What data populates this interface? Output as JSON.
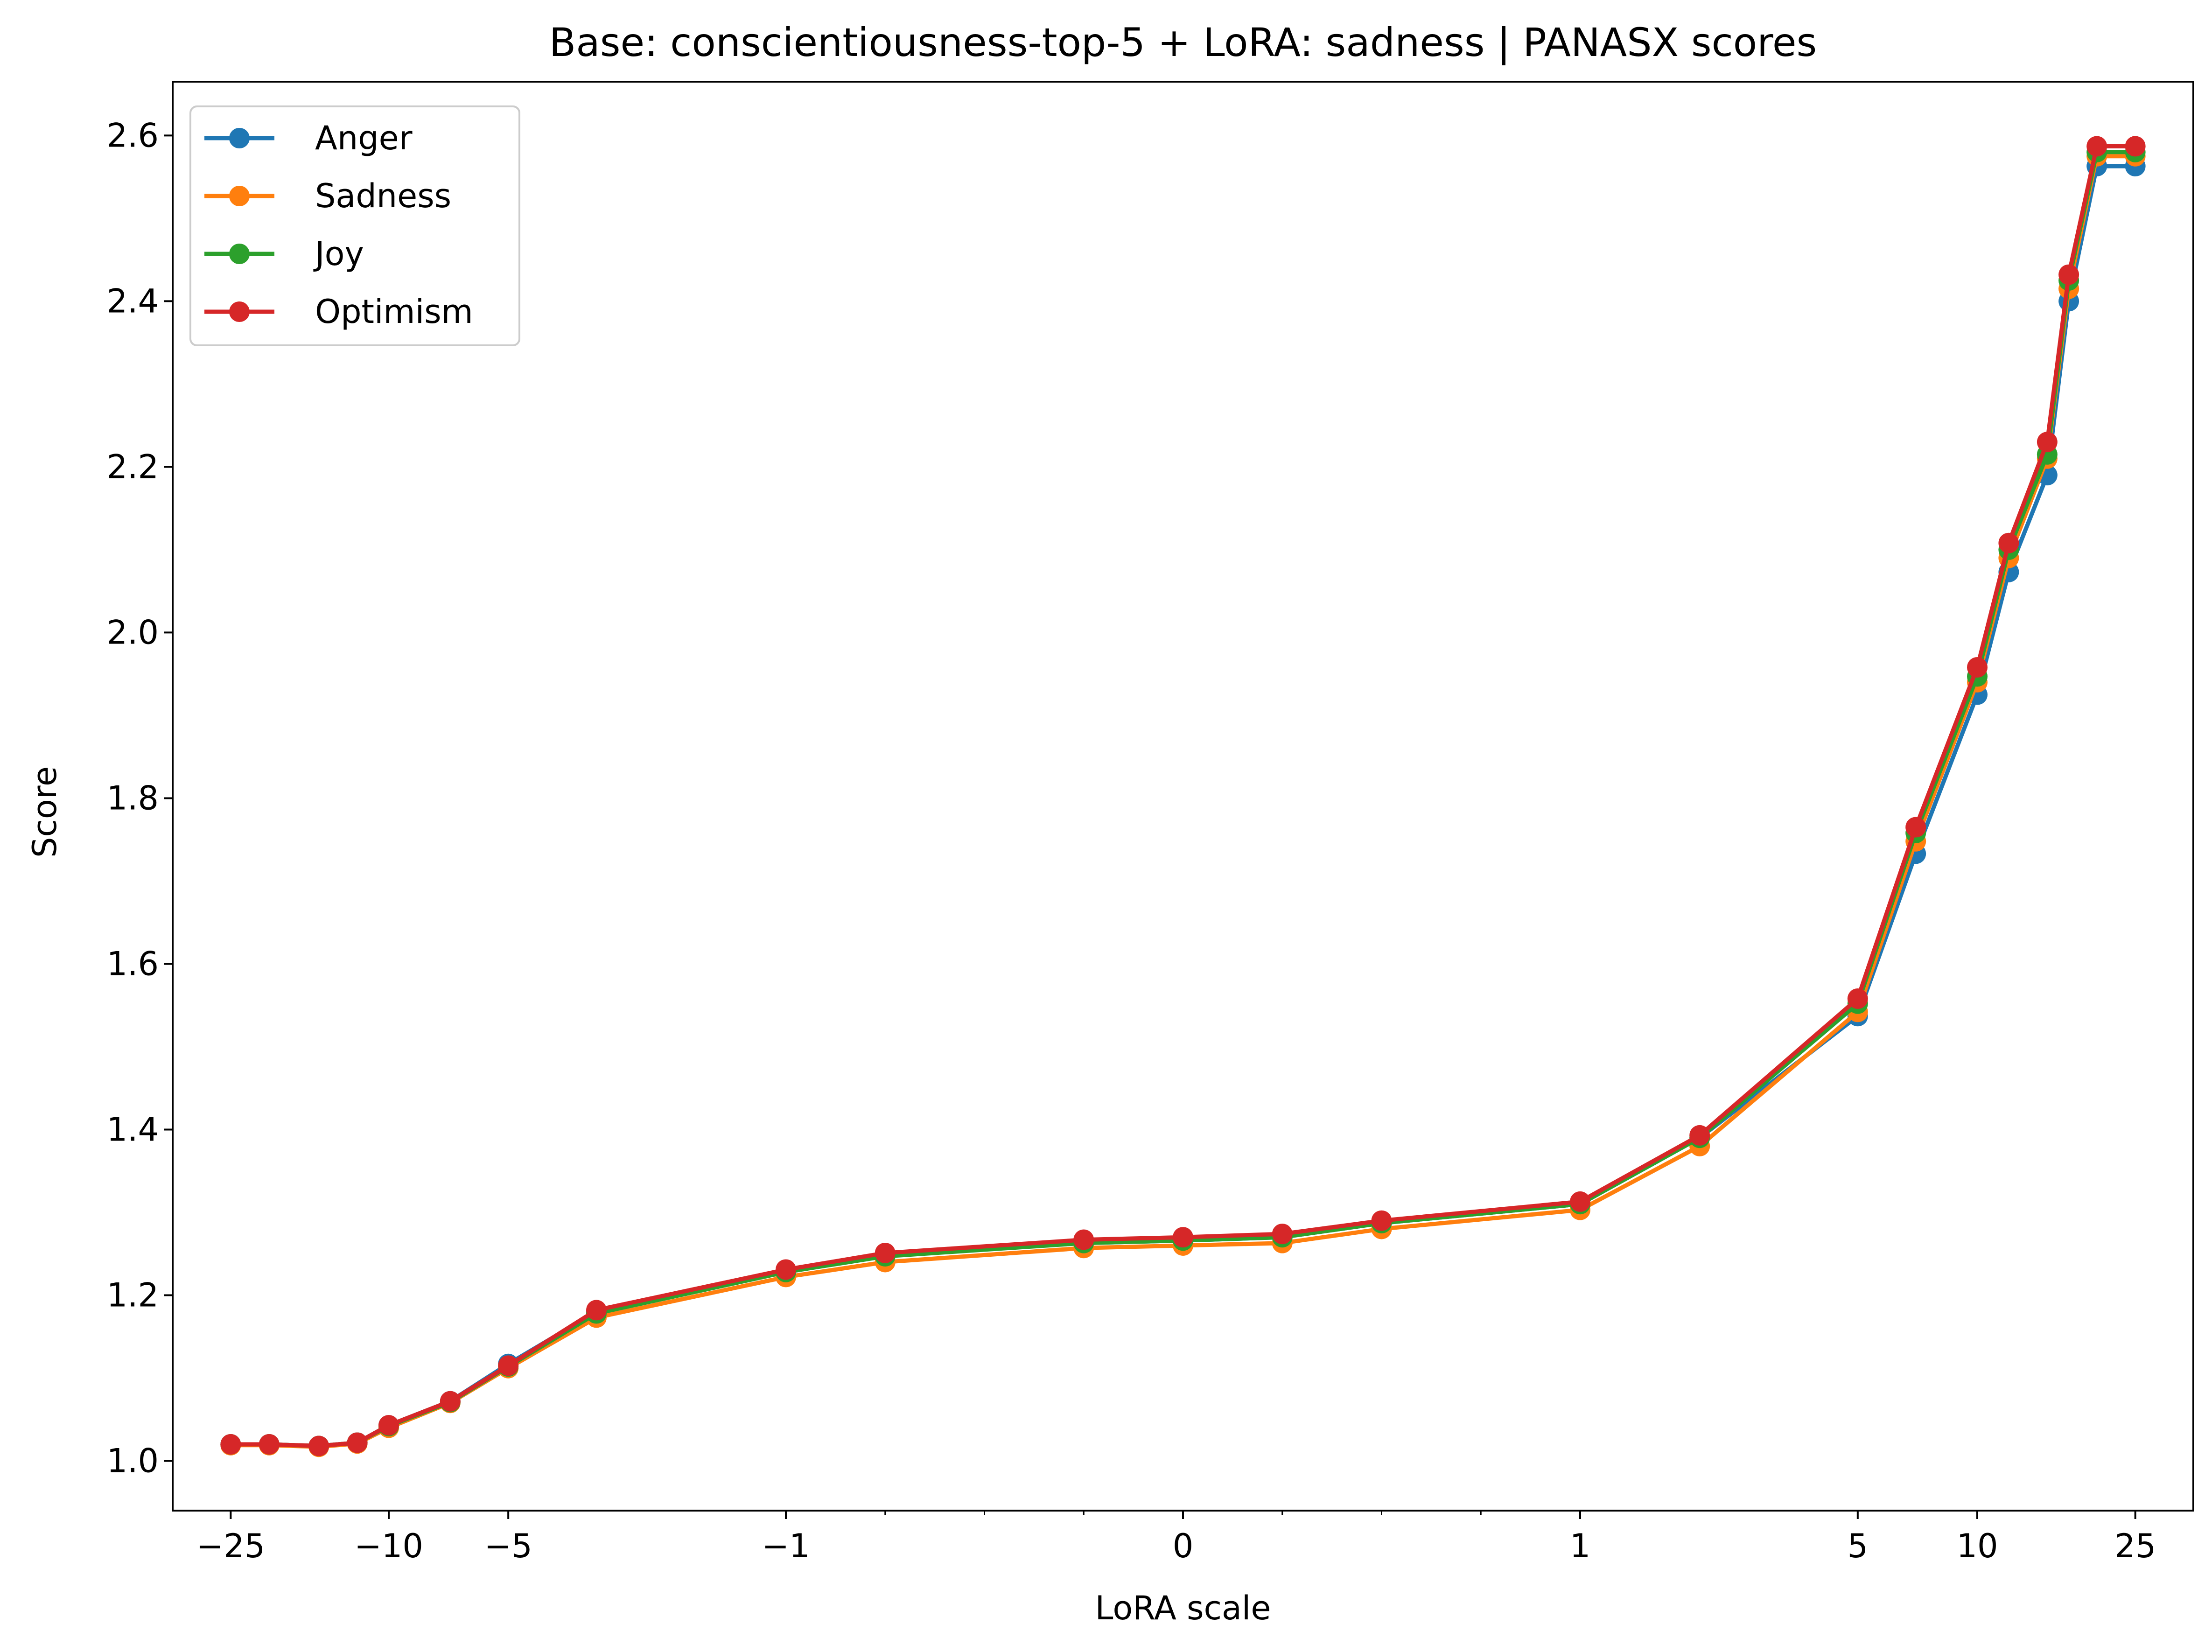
{
  "chart_data": {
    "type": "line",
    "title": "Base: conscientiousness-top-5 + LoRA: sadness | PANASX scores",
    "xlabel": "LoRA scale",
    "ylabel": "Score",
    "xscale": "symlog",
    "xlim": [
      -35,
      35
    ],
    "ylim": [
      0.94,
      2.665
    ],
    "x_tick_labels": [
      "−25",
      "−10",
      "−5",
      "−1",
      "0",
      "1",
      "5",
      "10",
      "25"
    ],
    "y_tick_labels": [
      "1.0",
      "1.2",
      "1.4",
      "1.6",
      "1.8",
      "2.0",
      "2.2",
      "2.4",
      "2.6"
    ],
    "grid": false,
    "legend_position": "top-left",
    "x": [
      -25,
      -20,
      -15,
      -12,
      -10,
      -7,
      -5,
      -3,
      -1,
      -0.75,
      -0.25,
      0,
      0.25,
      0.5,
      1,
      2,
      5,
      7,
      10,
      12,
      15,
      17,
      20,
      25
    ],
    "series": [
      {
        "name": "Anger",
        "color": "#1f77b4",
        "values": [
          1.02,
          1.02,
          1.018,
          1.022,
          1.043,
          1.072,
          1.117,
          1.18,
          1.228,
          1.248,
          1.263,
          1.266,
          1.27,
          1.287,
          1.31,
          1.39,
          1.537,
          1.733,
          1.925,
          2.073,
          2.19,
          2.4,
          2.563,
          2.563
        ]
      },
      {
        "name": "Sadness",
        "color": "#ff7f0e",
        "values": [
          1.019,
          1.019,
          1.017,
          1.021,
          1.04,
          1.07,
          1.112,
          1.173,
          1.222,
          1.24,
          1.257,
          1.26,
          1.263,
          1.28,
          1.303,
          1.38,
          1.542,
          1.748,
          1.94,
          2.09,
          2.21,
          2.415,
          2.575,
          2.575
        ]
      },
      {
        "name": "Joy",
        "color": "#2ca02c",
        "values": [
          1.02,
          1.02,
          1.018,
          1.022,
          1.042,
          1.071,
          1.114,
          1.178,
          1.228,
          1.247,
          1.263,
          1.266,
          1.27,
          1.287,
          1.31,
          1.39,
          1.552,
          1.758,
          1.947,
          2.1,
          2.215,
          2.425,
          2.58,
          2.58
        ]
      },
      {
        "name": "Optimism",
        "color": "#d62728",
        "values": [
          1.02,
          1.02,
          1.018,
          1.022,
          1.043,
          1.072,
          1.115,
          1.182,
          1.231,
          1.251,
          1.267,
          1.27,
          1.274,
          1.29,
          1.313,
          1.393,
          1.558,
          1.765,
          1.958,
          2.108,
          2.23,
          2.432,
          2.587,
          2.587
        ]
      }
    ]
  }
}
